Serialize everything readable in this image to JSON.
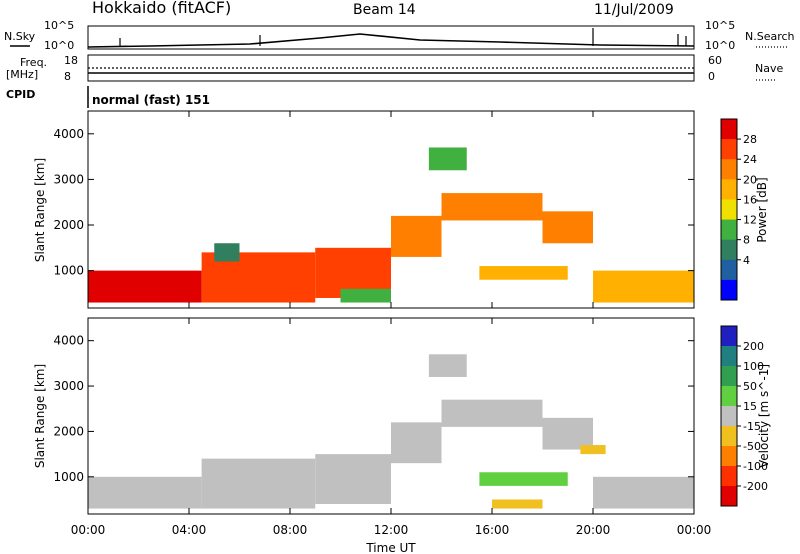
{
  "header": {
    "station": "Hokkaido (fitACF)",
    "beam": "Beam 14",
    "date": "11/Jul/2009"
  },
  "strips": {
    "nsky_label": "N.Sky",
    "nsearch_label": "N.Search",
    "freq_label_1": "Freq.",
    "freq_label_2": "[MHz]",
    "nave_label": "Nave",
    "cpid_label": "CPID",
    "cpid_value": "normal (fast) 151",
    "nsky_ticks": [
      "10^5",
      "10^0"
    ],
    "nsearch_ticks": [
      "10^5",
      "10^0"
    ],
    "freq_ticks": [
      "18",
      "8"
    ],
    "nave_ticks": [
      "60",
      "0"
    ]
  },
  "axes": {
    "ylabel": "Slant Range [km]",
    "xlabel": "Time UT",
    "y_ticks": [
      "1000",
      "2000",
      "3000",
      "4000"
    ],
    "x_ticks": [
      "00:00",
      "04:00",
      "08:00",
      "12:00",
      "16:00",
      "20:00",
      "00:00"
    ]
  },
  "colorbars": {
    "power": {
      "label": "Power [dB]",
      "ticks": [
        "28",
        "24",
        "20",
        "16",
        "12",
        "8",
        "4"
      ],
      "colors": [
        "#e00000",
        "#ff4000",
        "#ff8000",
        "#ffb000",
        "#f0e000",
        "#40b040",
        "#308060",
        "#2060a0",
        "#0000ff"
      ]
    },
    "velocity": {
      "label": "Velocity [m s^-1]",
      "ticks": [
        "200",
        "100",
        "50",
        "15",
        "-15",
        "-50",
        "-100",
        "-200"
      ],
      "colors": [
        "#2020c0",
        "#208080",
        "#30a050",
        "#60d040",
        "#c0c0c0",
        "#f0c020",
        "#ff8000",
        "#ff3000",
        "#e00000"
      ]
    }
  },
  "chart_data": [
    {
      "type": "heatmap",
      "title": "Power",
      "xlabel": "Time UT",
      "ylabel": "Slant Range [km]",
      "xlim": [
        0,
        24
      ],
      "ylim": [
        180,
        4500
      ],
      "colorbar_label": "Power [dB]",
      "colorbar_range": [
        0,
        32
      ],
      "cells": [
        {
          "t0": 0,
          "t1": 4.5,
          "r0": 300,
          "r1": 1000,
          "v": 30
        },
        {
          "t0": 4.5,
          "t1": 9,
          "r0": 300,
          "r1": 1400,
          "v": 28
        },
        {
          "t0": 9,
          "t1": 12,
          "r0": 400,
          "r1": 1500,
          "v": 26
        },
        {
          "t0": 12,
          "t1": 14,
          "r0": 1300,
          "r1": 2200,
          "v": 24
        },
        {
          "t0": 14,
          "t1": 18,
          "r0": 2100,
          "r1": 2700,
          "v": 24
        },
        {
          "t0": 18,
          "t1": 20,
          "r0": 1600,
          "r1": 2300,
          "v": 24
        },
        {
          "t0": 15.5,
          "t1": 19,
          "r0": 800,
          "r1": 1100,
          "v": 18
        },
        {
          "t0": 20,
          "t1": 24,
          "r0": 300,
          "r1": 1000,
          "v": 20
        },
        {
          "t0": 13.5,
          "t1": 15,
          "r0": 3200,
          "r1": 3700,
          "v": 14
        },
        {
          "t0": 5,
          "t1": 6,
          "r0": 1200,
          "r1": 1600,
          "v": 10
        },
        {
          "t0": 10,
          "t1": 12,
          "r0": 300,
          "r1": 600,
          "v": 12
        }
      ]
    },
    {
      "type": "heatmap",
      "title": "Velocity",
      "xlabel": "Time UT",
      "ylabel": "Slant Range [km]",
      "xlim": [
        0,
        24
      ],
      "ylim": [
        180,
        4500
      ],
      "colorbar_label": "Velocity [m s^-1]",
      "colorbar_range": [
        -250,
        250
      ],
      "cells": [
        {
          "t0": 0,
          "t1": 4.5,
          "r0": 300,
          "r1": 1000,
          "v": 0
        },
        {
          "t0": 4.5,
          "t1": 9,
          "r0": 300,
          "r1": 1400,
          "v": 0
        },
        {
          "t0": 9,
          "t1": 12,
          "r0": 400,
          "r1": 1500,
          "v": 0
        },
        {
          "t0": 12,
          "t1": 14,
          "r0": 1300,
          "r1": 2200,
          "v": 0
        },
        {
          "t0": 14,
          "t1": 18,
          "r0": 2100,
          "r1": 2700,
          "v": 0
        },
        {
          "t0": 18,
          "t1": 20,
          "r0": 1600,
          "r1": 2300,
          "v": 0
        },
        {
          "t0": 15.5,
          "t1": 19,
          "r0": 800,
          "r1": 1100,
          "v": 30
        },
        {
          "t0": 20,
          "t1": 24,
          "r0": 300,
          "r1": 1000,
          "v": 0
        },
        {
          "t0": 13.5,
          "t1": 15,
          "r0": 3200,
          "r1": 3700,
          "v": 0
        },
        {
          "t0": 16,
          "t1": 18,
          "r0": 300,
          "r1": 500,
          "v": -40
        },
        {
          "t0": 19.5,
          "t1": 20.5,
          "r0": 1500,
          "r1": 1700,
          "v": -30
        }
      ]
    }
  ]
}
